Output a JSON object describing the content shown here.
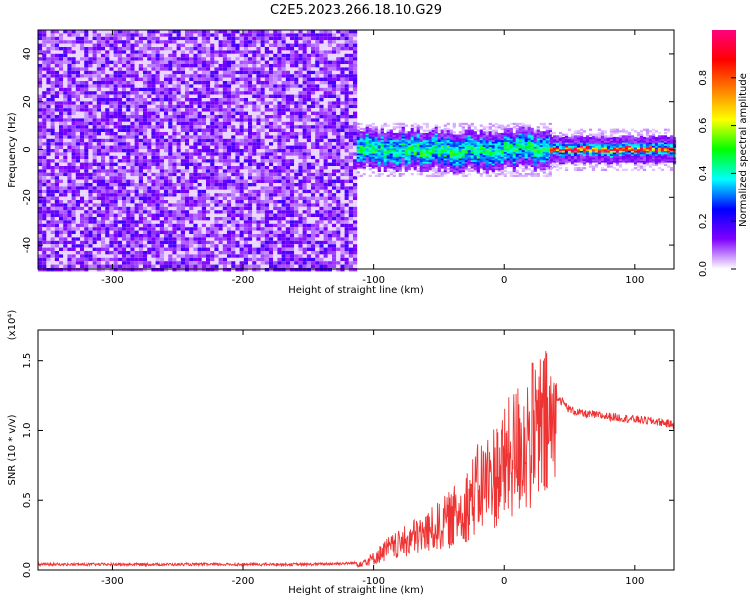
{
  "title": "C2E5.2023.266.18.10.G29",
  "chart_data": [
    {
      "type": "heatmap",
      "title": "C2E5.2023.266.18.10.G29",
      "xlabel": "Height of straight line (km)",
      "ylabel": "Frequency (Hz)",
      "xlim": [
        -357,
        130
      ],
      "ylim": [
        -50,
        50
      ],
      "xticks": [
        -300,
        -200,
        -100,
        0,
        100
      ],
      "yticks": [
        -40,
        -20,
        0,
        20,
        40
      ],
      "colorbar": {
        "label": "Normalized spectral amplitude",
        "range": [
          0,
          1
        ],
        "ticks": [
          "0.0",
          "0.2",
          "0.4",
          "0.6",
          "0.8"
        ],
        "colormap": [
          "#ffffff",
          "#7f00ff",
          "#0000ff",
          "#00ffff",
          "#00ff00",
          "#ffff00",
          "#ff7f00",
          "#ff0000",
          "#ff0080"
        ]
      },
      "regions": [
        {
          "x_start": -357,
          "x_end": -113,
          "freq_span": [
            -50,
            50
          ],
          "description_level": 0.12
        },
        {
          "x_start": -113,
          "x_end": 35,
          "freq_center": 0,
          "freq_halfwidth": 5,
          "peak_level": 0.45
        },
        {
          "x_start": 35,
          "x_end": 130,
          "freq_center": 0,
          "freq_halfwidth": 2.5,
          "peak_level": 0.85
        }
      ]
    },
    {
      "type": "line",
      "xlabel": "Height of straight line (km)",
      "ylabel": "SNR (10 * v/v)",
      "scale_label": "(x10⁴)",
      "xlim": [
        -357,
        130
      ],
      "ylim": [
        0,
        1.72
      ],
      "xticks": [
        -300,
        -200,
        -100,
        0,
        100
      ],
      "yticks": [
        "0.0",
        "0.5",
        "1.0",
        "1.5"
      ],
      "line_color": "#ee3333",
      "series": [
        {
          "x": [
            -357,
            -300,
            -200,
            -150,
            -113,
            -100,
            -90,
            -80,
            -70,
            -60,
            -50,
            -40,
            -30,
            -20,
            -10,
            0,
            10,
            20,
            30,
            40,
            50,
            60,
            80,
            100,
            120,
            130
          ],
          "values": [
            0.04,
            0.04,
            0.04,
            0.04,
            0.05,
            0.1,
            0.18,
            0.22,
            0.28,
            0.32,
            0.38,
            0.45,
            0.55,
            0.7,
            0.8,
            0.9,
            1.05,
            1.15,
            1.22,
            1.25,
            1.15,
            1.12,
            1.1,
            1.08,
            1.06,
            1.04
          ]
        }
      ]
    }
  ]
}
